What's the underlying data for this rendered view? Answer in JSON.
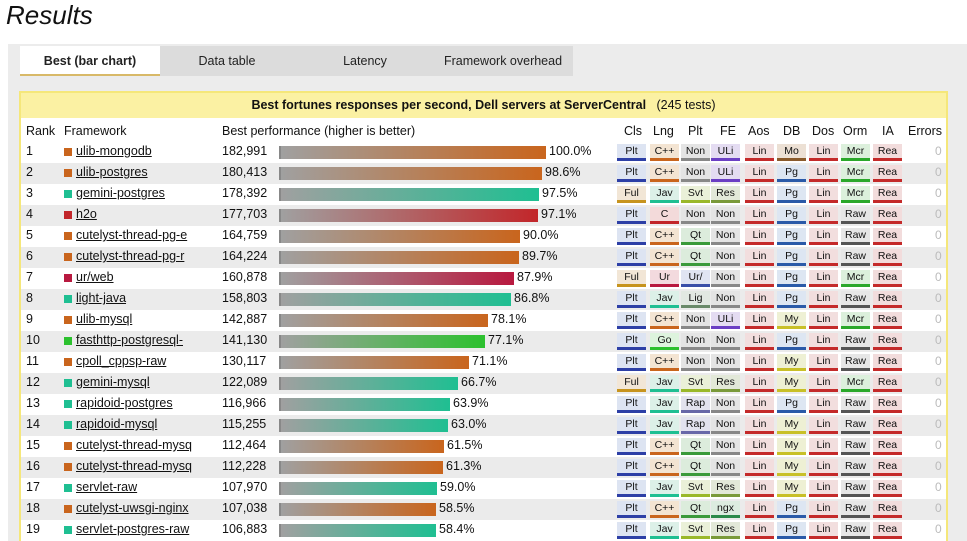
{
  "page": {
    "title": "Results"
  },
  "tabs": [
    {
      "label": "Best (bar chart)",
      "active": true
    },
    {
      "label": "Data table",
      "active": false
    },
    {
      "label": "Latency",
      "active": false
    },
    {
      "label": "Framework overhead",
      "active": false
    }
  ],
  "caption": {
    "main": "Best fortunes responses per second, Dell servers at ServerCentral",
    "count": "(245 tests)"
  },
  "headers": {
    "rank": "Rank",
    "framework": "Framework",
    "perf": "Best performance (higher is better)",
    "cls": "Cls",
    "lng": "Lng",
    "plt": "Plt",
    "fe": "FE",
    "aos": "Aos",
    "db": "DB",
    "dos": "Dos",
    "orm": "Orm",
    "ia": "IA",
    "errors": "Errors"
  },
  "colors": {
    "cpp": "#c9651d",
    "java": "#1fbf92",
    "c": "#c2262a",
    "ur": "#b8193f",
    "go": "#2cc12e"
  },
  "chart_data": {
    "type": "bar",
    "orientation": "horizontal",
    "categories": [
      "ulib-mongodb",
      "ulib-postgres",
      "gemini-postgres",
      "h2o",
      "cutelyst-thread-pg-e",
      "cutelyst-thread-pg-r",
      "ur/web",
      "light-java",
      "ulib-mysql",
      "fasthttp-postgresql-",
      "cpoll_cppsp-raw",
      "gemini-mysql",
      "rapidoid-postgres",
      "rapidoid-mysql",
      "cutelyst-thread-mysq",
      "cutelyst-thread-mysq",
      "servlet-raw",
      "cutelyst-uwsgi-nginx",
      "servlet-postgres-raw"
    ],
    "values": [
      182991,
      180413,
      178392,
      177703,
      164759,
      164224,
      160878,
      158803,
      142887,
      141130,
      130117,
      122089,
      116966,
      115255,
      112464,
      112228,
      107970,
      107038,
      106883
    ],
    "ylabel": "Best performance (higher is better)"
  },
  "rows": [
    {
      "rank": "1",
      "name": "ulib-mongodb",
      "perf": "182,991",
      "pct": "100.0%",
      "frac": 1.0,
      "color": "cpp",
      "cells": [
        "Plt",
        "C++",
        "Non",
        "ULi",
        "Lin",
        "Mo",
        "Lin",
        "Mcr",
        "Rea"
      ],
      "errors": "0"
    },
    {
      "rank": "2",
      "name": "ulib-postgres",
      "perf": "180,413",
      "pct": "98.6%",
      "frac": 0.986,
      "color": "cpp",
      "cells": [
        "Plt",
        "C++",
        "Non",
        "ULi",
        "Lin",
        "Pg",
        "Lin",
        "Mcr",
        "Rea"
      ],
      "errors": "0"
    },
    {
      "rank": "3",
      "name": "gemini-postgres",
      "perf": "178,392",
      "pct": "97.5%",
      "frac": 0.975,
      "color": "java",
      "cells": [
        "Ful",
        "Jav",
        "Svt",
        "Res",
        "Lin",
        "Pg",
        "Lin",
        "Mcr",
        "Rea"
      ],
      "errors": "0"
    },
    {
      "rank": "4",
      "name": "h2o",
      "perf": "177,703",
      "pct": "97.1%",
      "frac": 0.971,
      "color": "c",
      "cells": [
        "Plt",
        "C",
        "Non",
        "Non",
        "Lin",
        "Pg",
        "Lin",
        "Raw",
        "Rea"
      ],
      "errors": "0"
    },
    {
      "rank": "5",
      "name": "cutelyst-thread-pg-e",
      "perf": "164,759",
      "pct": "90.0%",
      "frac": 0.9,
      "color": "cpp",
      "cells": [
        "Plt",
        "C++",
        "Qt",
        "Non",
        "Lin",
        "Pg",
        "Lin",
        "Raw",
        "Rea"
      ],
      "errors": "0"
    },
    {
      "rank": "6",
      "name": "cutelyst-thread-pg-r",
      "perf": "164,224",
      "pct": "89.7%",
      "frac": 0.897,
      "color": "cpp",
      "cells": [
        "Plt",
        "C++",
        "Qt",
        "Non",
        "Lin",
        "Pg",
        "Lin",
        "Raw",
        "Rea"
      ],
      "errors": "0"
    },
    {
      "rank": "7",
      "name": "ur/web",
      "perf": "160,878",
      "pct": "87.9%",
      "frac": 0.879,
      "color": "ur",
      "cells": [
        "Ful",
        "Ur",
        "Ur/",
        "Non",
        "Lin",
        "Pg",
        "Lin",
        "Mcr",
        "Rea"
      ],
      "errors": "0"
    },
    {
      "rank": "8",
      "name": "light-java",
      "perf": "158,803",
      "pct": "86.8%",
      "frac": 0.868,
      "color": "java",
      "cells": [
        "Plt",
        "Jav",
        "Lig",
        "Non",
        "Lin",
        "Pg",
        "Lin",
        "Raw",
        "Rea"
      ],
      "errors": "0"
    },
    {
      "rank": "9",
      "name": "ulib-mysql",
      "perf": "142,887",
      "pct": "78.1%",
      "frac": 0.781,
      "color": "cpp",
      "cells": [
        "Plt",
        "C++",
        "Non",
        "ULi",
        "Lin",
        "My",
        "Lin",
        "Mcr",
        "Rea"
      ],
      "errors": "0"
    },
    {
      "rank": "10",
      "name": "fasthttp-postgresql-",
      "perf": "141,130",
      "pct": "77.1%",
      "frac": 0.771,
      "color": "go",
      "cells": [
        "Plt",
        "Go",
        "Non",
        "Non",
        "Lin",
        "Pg",
        "Lin",
        "Raw",
        "Rea"
      ],
      "errors": "0"
    },
    {
      "rank": "11",
      "name": "cpoll_cppsp-raw",
      "perf": "130,117",
      "pct": "71.1%",
      "frac": 0.711,
      "color": "cpp",
      "cells": [
        "Plt",
        "C++",
        "Non",
        "Non",
        "Lin",
        "My",
        "Lin",
        "Raw",
        "Rea"
      ],
      "errors": "0"
    },
    {
      "rank": "12",
      "name": "gemini-mysql",
      "perf": "122,089",
      "pct": "66.7%",
      "frac": 0.667,
      "color": "java",
      "cells": [
        "Ful",
        "Jav",
        "Svt",
        "Res",
        "Lin",
        "My",
        "Lin",
        "Mcr",
        "Rea"
      ],
      "errors": "0"
    },
    {
      "rank": "13",
      "name": "rapidoid-postgres",
      "perf": "116,966",
      "pct": "63.9%",
      "frac": 0.639,
      "color": "java",
      "cells": [
        "Plt",
        "Jav",
        "Rap",
        "Non",
        "Lin",
        "Pg",
        "Lin",
        "Raw",
        "Rea"
      ],
      "errors": "0"
    },
    {
      "rank": "14",
      "name": "rapidoid-mysql",
      "perf": "115,255",
      "pct": "63.0%",
      "frac": 0.63,
      "color": "java",
      "cells": [
        "Plt",
        "Jav",
        "Rap",
        "Non",
        "Lin",
        "My",
        "Lin",
        "Raw",
        "Rea"
      ],
      "errors": "0"
    },
    {
      "rank": "15",
      "name": "cutelyst-thread-mysq",
      "perf": "112,464",
      "pct": "61.5%",
      "frac": 0.615,
      "color": "cpp",
      "cells": [
        "Plt",
        "C++",
        "Qt",
        "Non",
        "Lin",
        "My",
        "Lin",
        "Raw",
        "Rea"
      ],
      "errors": "0"
    },
    {
      "rank": "16",
      "name": "cutelyst-thread-mysq",
      "perf": "112,228",
      "pct": "61.3%",
      "frac": 0.613,
      "color": "cpp",
      "cells": [
        "Plt",
        "C++",
        "Qt",
        "Non",
        "Lin",
        "My",
        "Lin",
        "Raw",
        "Rea"
      ],
      "errors": "0"
    },
    {
      "rank": "17",
      "name": "servlet-raw",
      "perf": "107,970",
      "pct": "59.0%",
      "frac": 0.59,
      "color": "java",
      "cells": [
        "Plt",
        "Jav",
        "Svt",
        "Res",
        "Lin",
        "My",
        "Lin",
        "Raw",
        "Rea"
      ],
      "errors": "0"
    },
    {
      "rank": "18",
      "name": "cutelyst-uwsgi-nginx",
      "perf": "107,038",
      "pct": "58.5%",
      "frac": 0.585,
      "color": "cpp",
      "cells": [
        "Plt",
        "C++",
        "Qt",
        "ngx",
        "Lin",
        "Pg",
        "Lin",
        "Raw",
        "Rea"
      ],
      "errors": "0"
    },
    {
      "rank": "19",
      "name": "servlet-postgres-raw",
      "perf": "106,883",
      "pct": "58.4%",
      "frac": 0.584,
      "color": "java",
      "cells": [
        "Plt",
        "Jav",
        "Svt",
        "Res",
        "Lin",
        "Pg",
        "Lin",
        "Raw",
        "Rea"
      ],
      "errors": "0"
    }
  ]
}
